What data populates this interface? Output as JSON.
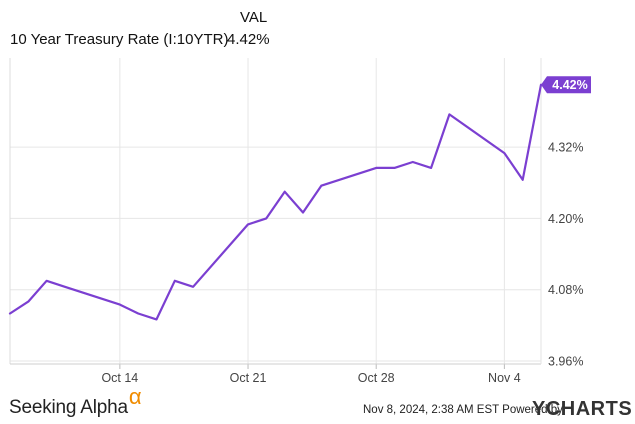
{
  "legend": {
    "column_header": "VAL",
    "series_name": "10 Year Treasury Rate (I:10YTR)",
    "series_value": "4.42%"
  },
  "chart_data": {
    "type": "line",
    "title": "",
    "xlabel": "",
    "ylabel": "",
    "ylim": [
      3.955,
      4.47
    ],
    "y_ticks": [
      "3.96%",
      "4.08%",
      "4.20%",
      "4.32%"
    ],
    "x_ticks": [
      {
        "label": "Oct 14",
        "date": "2024-10-14"
      },
      {
        "label": "Oct 21",
        "date": "2024-10-21"
      },
      {
        "label": "Oct 28",
        "date": "2024-10-28"
      },
      {
        "label": "Nov 4",
        "date": "2024-11-04"
      }
    ],
    "grid": true,
    "series": [
      {
        "name": "10 Year Treasury Rate (I:10YTR)",
        "color": "#7b3fd1",
        "points": [
          {
            "date": "2024-10-08",
            "value": 4.04
          },
          {
            "date": "2024-10-09",
            "value": 4.06
          },
          {
            "date": "2024-10-10",
            "value": 4.095
          },
          {
            "date": "2024-10-11",
            "value": 4.085
          },
          {
            "date": "2024-10-14",
            "value": 4.055
          },
          {
            "date": "2024-10-15",
            "value": 4.04
          },
          {
            "date": "2024-10-16",
            "value": 4.03
          },
          {
            "date": "2024-10-17",
            "value": 4.095
          },
          {
            "date": "2024-10-18",
            "value": 4.085
          },
          {
            "date": "2024-10-21",
            "value": 4.19
          },
          {
            "date": "2024-10-22",
            "value": 4.2
          },
          {
            "date": "2024-10-23",
            "value": 4.245
          },
          {
            "date": "2024-10-24",
            "value": 4.21
          },
          {
            "date": "2024-10-25",
            "value": 4.255
          },
          {
            "date": "2024-10-28",
            "value": 4.285
          },
          {
            "date": "2024-10-29",
            "value": 4.285
          },
          {
            "date": "2024-10-30",
            "value": 4.295
          },
          {
            "date": "2024-10-31",
            "value": 4.285
          },
          {
            "date": "2024-11-01",
            "value": 4.375
          },
          {
            "date": "2024-11-04",
            "value": 4.31
          },
          {
            "date": "2024-11-05",
            "value": 4.265
          },
          {
            "date": "2024-11-06",
            "value": 4.425
          }
        ]
      }
    ],
    "last_value_label": "4.42%"
  },
  "footer": {
    "brand": "Seeking Alpha",
    "brand_symbol": "α",
    "timestamp": "Nov 8, 2024, 2:38 AM EST Powered by",
    "powered_by": "YCHARTS"
  }
}
